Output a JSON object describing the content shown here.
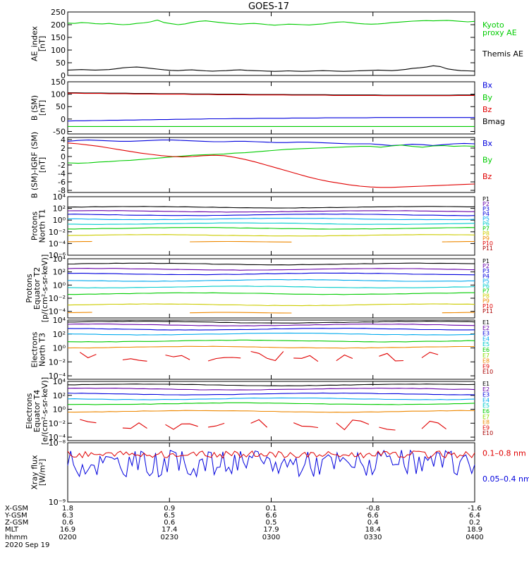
{
  "title": "GOES-17",
  "colors": {
    "black": "#000000",
    "red": "#e00000",
    "green": "#00cc00",
    "blue": "#0000dd",
    "navy": "#000088",
    "purple": "#6600aa",
    "magenta": "#aa00aa",
    "cyan": "#00aaee",
    "teal": "#00cccc",
    "yellow": "#cccc00",
    "orange": "#ee8800",
    "darkred": "#aa0000",
    "lime": "#88dd00"
  },
  "chart_data": [
    {
      "type": "line",
      "ylabel": [
        "AE_index",
        "[nT]"
      ],
      "ylim": [
        0,
        250
      ],
      "yticks": [
        "250",
        "200",
        "150",
        "100",
        "50",
        "0"
      ],
      "yvals": [
        250,
        200,
        150,
        100,
        50,
        0
      ],
      "log": false,
      "legend": [
        {
          "name": "Kyoto",
          "color": "#00cc00"
        },
        {
          "name": "proxy AE",
          "color": "#00cc00"
        },
        {
          "name": "Themis AE",
          "color": "#000000"
        }
      ],
      "series": [
        {
          "color": "#00cc00",
          "values": [
            206,
            205,
            208,
            207,
            204,
            203,
            205,
            202,
            200,
            201,
            205,
            207,
            211,
            218,
            208,
            204,
            200,
            203,
            209,
            213,
            215,
            212,
            209,
            206,
            204,
            202,
            204,
            205,
            203,
            200,
            198,
            200,
            202,
            201,
            200,
            199,
            201,
            203,
            207,
            210,
            211,
            208,
            205,
            203,
            202,
            203,
            205,
            208,
            210,
            212,
            214,
            215,
            216,
            215,
            216,
            217,
            215,
            213,
            211,
            213
          ]
        },
        {
          "color": "#000000",
          "values": [
            21,
            22,
            23,
            22,
            21,
            22,
            23,
            26,
            30,
            32,
            33,
            31,
            28,
            25,
            22,
            20,
            19,
            21,
            22,
            20,
            18,
            17,
            18,
            19,
            21,
            22,
            20,
            19,
            18,
            17,
            16,
            17,
            18,
            17,
            16,
            17,
            18,
            19,
            18,
            17,
            16,
            17,
            18,
            19,
            20,
            21,
            20,
            19,
            21,
            24,
            28,
            30,
            33,
            38,
            35,
            26,
            22,
            19,
            18,
            17
          ]
        }
      ]
    },
    {
      "type": "line",
      "ylabel": [
        "B (SM)",
        "[nT]"
      ],
      "ylim": [
        -60,
        150
      ],
      "yticks": [
        "150",
        "100",
        "50",
        "0",
        "-50"
      ],
      "yvals": [
        150,
        100,
        50,
        0,
        -50
      ],
      "log": false,
      "legend": [
        {
          "name": "Bx",
          "color": "#0000dd"
        },
        {
          "name": "By",
          "color": "#00cc00"
        },
        {
          "name": "Bz",
          "color": "#e00000"
        },
        {
          "name": "Bmag",
          "color": "#000000"
        }
      ],
      "series": [
        {
          "color": "#0000dd",
          "values": [
            -8,
            -7,
            -7,
            -6,
            -6,
            -5,
            -5,
            -4,
            -4,
            -3,
            -3,
            -2,
            -2,
            -1,
            -1,
            0,
            0,
            1,
            1,
            1,
            2,
            2,
            2,
            3,
            3,
            3,
            3,
            4,
            4,
            4,
            4,
            5,
            5,
            5,
            5,
            5,
            5,
            6,
            6,
            6,
            6,
            6,
            6,
            6,
            6,
            6,
            6,
            6,
            6,
            6
          ]
        },
        {
          "color": "#00cc00",
          "values": [
            -30,
            -30,
            -30,
            -30,
            -30,
            -30,
            -30,
            -30,
            -30,
            -30,
            -30,
            -30,
            -30,
            -30,
            -30,
            -30,
            -30,
            -30,
            -30,
            -30,
            -30,
            -30,
            -30,
            -30,
            -30,
            -30,
            -30,
            -30,
            -30,
            -30,
            -30,
            -30,
            -30,
            -30,
            -30,
            -30,
            -30,
            -30,
            -30,
            -30,
            -30,
            -30,
            -30,
            -30,
            -30,
            -30,
            -30,
            -30,
            -30,
            -30
          ]
        },
        {
          "color": "#000000",
          "values": [
            106,
            106,
            105,
            105,
            105,
            104,
            104,
            104,
            103,
            103,
            103,
            102,
            102,
            102,
            102,
            101,
            101,
            101,
            100,
            100,
            100,
            100,
            99,
            99,
            99,
            99,
            99,
            98,
            98,
            98,
            98,
            98,
            97,
            97,
            97,
            97,
            97,
            97,
            96,
            96,
            96,
            96,
            96,
            96,
            96,
            96,
            96,
            97,
            97,
            97
          ]
        },
        {
          "color": "#e00000",
          "values": [
            104,
            104,
            103,
            103,
            103,
            102,
            102,
            102,
            101,
            101,
            101,
            100,
            100,
            100,
            100,
            99,
            99,
            99,
            98,
            98,
            98,
            98,
            97,
            97,
            97,
            97,
            97,
            96,
            96,
            96,
            96,
            96,
            95,
            95,
            95,
            95,
            95,
            95,
            94,
            94,
            94,
            94,
            94,
            94,
            94,
            94,
            94,
            95,
            95,
            95
          ]
        }
      ]
    },
    {
      "type": "line",
      "ylabel": [
        "B (SM)-IGRF (SM)",
        "[nT]"
      ],
      "ylim": [
        -8.5,
        4.5
      ],
      "yticks": [
        "4",
        "2",
        "0",
        "-2",
        "-4",
        "-6",
        "-8"
      ],
      "yvals": [
        4,
        2,
        0,
        -2,
        -4,
        -6,
        -8
      ],
      "log": false,
      "legend": [
        {
          "name": "Bx",
          "color": "#0000dd"
        },
        {
          "name": "By",
          "color": "#00cc00"
        },
        {
          "name": "Bz",
          "color": "#e00000"
        }
      ],
      "series": [
        {
          "color": "#0000dd",
          "values": [
            3.6,
            3.8,
            3.9,
            3.8,
            3.7,
            3.6,
            3.6,
            3.7,
            3.8,
            3.9,
            3.9,
            3.8,
            3.7,
            3.6,
            3.5,
            3.5,
            3.6,
            3.6,
            3.5,
            3.4,
            3.3,
            3.3,
            3.4,
            3.4,
            3.3,
            3.2,
            3.1,
            3.0,
            3.0,
            3.0,
            2.8,
            2.6,
            2.7,
            2.9,
            2.8,
            2.6,
            2.8,
            3.0,
            3.1,
            3.0
          ]
        },
        {
          "color": "#00cc00",
          "values": [
            -1.5,
            -1.6,
            -1.5,
            -1.3,
            -1.2,
            -1.0,
            -0.9,
            -0.7,
            -0.5,
            -0.3,
            -0.1,
            0.1,
            0.3,
            0.4,
            0.5,
            0.6,
            0.8,
            0.9,
            1.1,
            1.3,
            1.5,
            1.7,
            1.8,
            1.9,
            2.0,
            2.1,
            2.2,
            2.3,
            2.4,
            2.4,
            2.2,
            2.5,
            2.7,
            2.4,
            2.2,
            2.5,
            2.6,
            2.4,
            2.5,
            2.4
          ]
        },
        {
          "color": "#e00000",
          "values": [
            3.2,
            3.0,
            2.7,
            2.4,
            2.0,
            1.6,
            1.2,
            0.8,
            0.5,
            0.2,
            0.0,
            -0.1,
            0.0,
            0.2,
            0.3,
            0.2,
            -0.2,
            -0.7,
            -1.3,
            -2.0,
            -2.7,
            -3.4,
            -4.1,
            -4.8,
            -5.4,
            -5.9,
            -6.3,
            -6.7,
            -7.0,
            -7.2,
            -7.3,
            -7.3,
            -7.2,
            -7.1,
            -7.0,
            -6.9,
            -6.8,
            -6.7,
            -6.6,
            -6.5
          ]
        }
      ]
    },
    {
      "type": "line",
      "ylabel": [
        "Protons",
        "North T1"
      ],
      "ylim": [
        -6,
        4
      ],
      "yticks": [
        "10⁴",
        "10²",
        "10⁰",
        "10⁻²",
        "10⁻⁴",
        "10⁻⁶"
      ],
      "yvals": [
        4,
        2,
        0,
        -2,
        -4,
        -6
      ],
      "log": true,
      "legend": [
        {
          "name": "P1",
          "color": "#000000"
        },
        {
          "name": "P2",
          "color": "#6600aa"
        },
        {
          "name": "P3",
          "color": "#0000dd"
        },
        {
          "name": "P4",
          "color": "#0000dd"
        },
        {
          "name": "P5",
          "color": "#00aaee"
        },
        {
          "name": "P6",
          "color": "#00cccc"
        },
        {
          "name": "P7",
          "color": "#00cc00"
        },
        {
          "name": "P8",
          "color": "#cccc00"
        },
        {
          "name": "P9",
          "color": "#ee8800"
        },
        {
          "name": "P10",
          "color": "#e00000"
        },
        {
          "name": "P11",
          "color": "#aa0000"
        }
      ],
      "levels": [
        {
          "color": "#000000",
          "base": 2.2
        },
        {
          "color": "#6600aa",
          "base": 1.5
        },
        {
          "color": "#0000dd",
          "base": 0.9
        },
        {
          "color": "#00aaee",
          "base": 0.2
        },
        {
          "color": "#00cccc",
          "base": -0.6
        },
        {
          "color": "#00cc00",
          "base": -1.4
        },
        {
          "color": "#cccc00",
          "base": -2.6
        },
        {
          "color": "#ee8800",
          "base": -3.7,
          "partial": true
        }
      ]
    },
    {
      "type": "line",
      "ylabel": [
        "Protons",
        "Equator T2",
        "[p/(cm²-s-sr-keV)]"
      ],
      "ylim": [
        -5,
        4
      ],
      "yticks": [
        "10⁴",
        "10²",
        "10⁰",
        "10⁻²",
        "10⁻⁴"
      ],
      "yvals": [
        4,
        2,
        0,
        -2,
        -4
      ],
      "log": true,
      "legend": [
        {
          "name": "P1",
          "color": "#000000"
        },
        {
          "name": "P2",
          "color": "#6600aa"
        },
        {
          "name": "P3",
          "color": "#0000dd"
        },
        {
          "name": "P4",
          "color": "#0000dd"
        },
        {
          "name": "P5",
          "color": "#00aaee"
        },
        {
          "name": "P6",
          "color": "#00cccc"
        },
        {
          "name": "P7",
          "color": "#00cc00"
        },
        {
          "name": "P8",
          "color": "#cccc00"
        },
        {
          "name": "P9",
          "color": "#ee8800"
        },
        {
          "name": "P10",
          "color": "#e00000"
        },
        {
          "name": "P11",
          "color": "#aa0000"
        }
      ],
      "levels": [
        {
          "color": "#000000",
          "base": 3.2
        },
        {
          "color": "#6600aa",
          "base": 2.4
        },
        {
          "color": "#0000dd",
          "base": 1.7
        },
        {
          "color": "#00aaee",
          "base": 0.7
        },
        {
          "color": "#00cccc",
          "base": -0.3
        },
        {
          "color": "#00cc00",
          "base": -1.3
        },
        {
          "color": "#cccc00",
          "base": -3.0
        },
        {
          "color": "#ee8800",
          "base": -4.2,
          "partial": true
        }
      ]
    },
    {
      "type": "line",
      "ylabel": [
        "Electrons",
        "North T3"
      ],
      "ylim": [
        -4.5,
        4
      ],
      "yticks": [
        "10⁴",
        "10²",
        "10⁰",
        "10⁻²",
        "10⁻⁴"
      ],
      "yvals": [
        4,
        2,
        0,
        -2,
        -4
      ],
      "log": true,
      "legend": [
        {
          "name": "E1",
          "color": "#000000"
        },
        {
          "name": "E2",
          "color": "#6600aa"
        },
        {
          "name": "E3",
          "color": "#0000dd"
        },
        {
          "name": "E4",
          "color": "#00aaee"
        },
        {
          "name": "E5",
          "color": "#00cccc"
        },
        {
          "name": "E6",
          "color": "#00cc00"
        },
        {
          "name": "E7",
          "color": "#88dd00"
        },
        {
          "name": "E8",
          "color": "#ee8800"
        },
        {
          "name": "E9",
          "color": "#e00000"
        },
        {
          "name": "E10",
          "color": "#aa0000"
        }
      ],
      "levels": [
        {
          "color": "#000000",
          "base": 3.7
        },
        {
          "color": "#6600aa",
          "base": 3.3
        },
        {
          "color": "#0000dd",
          "base": 2.7
        },
        {
          "color": "#00aaee",
          "base": 2.0
        },
        {
          "color": "#00cc00",
          "base": 1.0
        },
        {
          "color": "#ee8800",
          "base": 0.1
        },
        {
          "color": "#e00000",
          "base": -1.2,
          "noisy": true
        }
      ]
    },
    {
      "type": "line",
      "ylabel": [
        "Electrons",
        "Equator T4",
        "[e/(cm²-s-sr-keV)]"
      ],
      "ylim": [
        -4.5,
        4
      ],
      "yticks": [
        "10⁴",
        "10²",
        "10⁰",
        "10⁻²",
        "10⁻⁴"
      ],
      "yvals": [
        4,
        2,
        0,
        -2,
        -4
      ],
      "log": true,
      "legend": [
        {
          "name": "E1",
          "color": "#000000"
        },
        {
          "name": "E2",
          "color": "#6600aa"
        },
        {
          "name": "E3",
          "color": "#0000dd"
        },
        {
          "name": "E4",
          "color": "#00aaee"
        },
        {
          "name": "E5",
          "color": "#00cccc"
        },
        {
          "name": "E6",
          "color": "#00cc00"
        },
        {
          "name": "E7",
          "color": "#88dd00"
        },
        {
          "name": "E8",
          "color": "#ee8800"
        },
        {
          "name": "E9",
          "color": "#e00000"
        },
        {
          "name": "E10",
          "color": "#aa0000"
        }
      ],
      "levels": [
        {
          "color": "#000000",
          "base": 3.5
        },
        {
          "color": "#6600aa",
          "base": 2.9
        },
        {
          "color": "#0000dd",
          "base": 2.2
        },
        {
          "color": "#00aaee",
          "base": 1.5
        },
        {
          "color": "#00cc00",
          "base": 0.8
        },
        {
          "color": "#ee8800",
          "base": -0.3
        },
        {
          "color": "#e00000",
          "base": -2.2,
          "noisy": true
        }
      ]
    },
    {
      "type": "line",
      "ylabel": [
        "Xray flux",
        "[W/m²]"
      ],
      "ylim": [
        -9,
        -8
      ],
      "yticks": [
        "10⁻⁸",
        "10⁻⁹"
      ],
      "yvals": [
        -8,
        -9
      ],
      "log": true,
      "legend": [
        {
          "name": "0.1–0.8 nm",
          "color": "#e00000"
        },
        {
          "name": "0.05–0.4 nm",
          "color": "#0000dd"
        }
      ],
      "xray": true
    }
  ],
  "xaxis": {
    "row_labels": [
      "X-GSM",
      "Y-GSM",
      "Z-GSM",
      "MLT",
      "hhmm",
      "2020 Sep 19"
    ],
    "columns": [
      [
        "1.8",
        "6.3",
        "0.6",
        "16.9",
        "0200"
      ],
      [
        "0.9",
        "6.5",
        "0.6",
        "17.4",
        "0230"
      ],
      [
        "0.1",
        "6.6",
        "0.5",
        "17.9",
        "0300"
      ],
      [
        "-0.8",
        "6.6",
        "0.4",
        "18.4",
        "0330"
      ],
      [
        "-1.6",
        "6.4",
        "0.2",
        "18.9",
        "0400"
      ]
    ]
  }
}
